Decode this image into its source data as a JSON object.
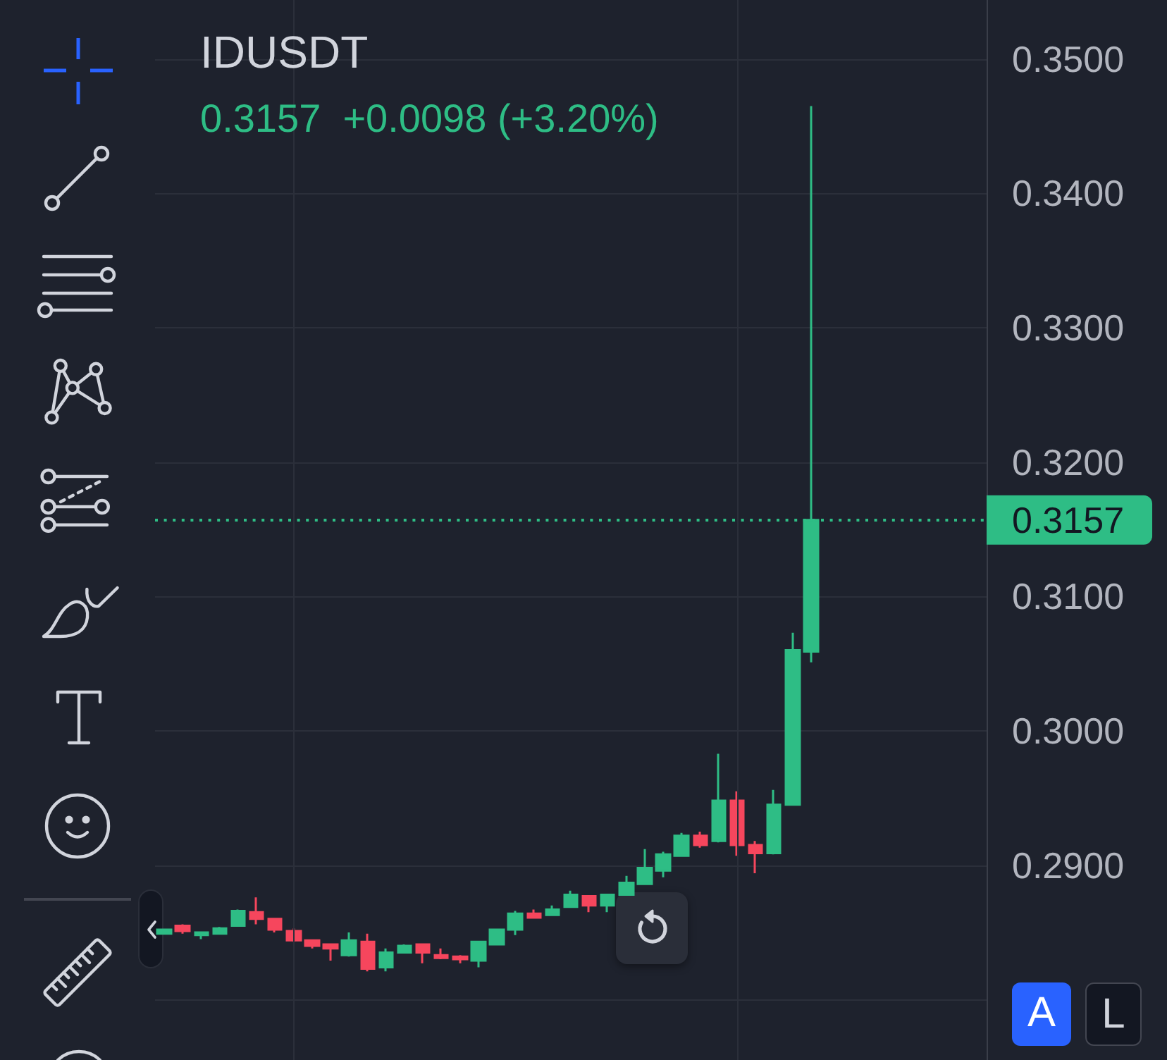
{
  "chart_data": {
    "type": "candlestick",
    "title": "IDUSDT",
    "subtitle": "0.3157  +0.0098 (+3.20%)",
    "categories": [
      null,
      null,
      null,
      null,
      null,
      null,
      null,
      null,
      null,
      null,
      null,
      null,
      null,
      null,
      null,
      null,
      null,
      null,
      null,
      null,
      null,
      null,
      null,
      null,
      null,
      null,
      null,
      null,
      null,
      null,
      null,
      null,
      null,
      null,
      null,
      null,
      null,
      null,
      null,
      null,
      null,
      null,
      null,
      null,
      null
    ],
    "ohlc": [
      [
        0.2849,
        0.2852,
        0.2849,
        0.2852
      ],
      [
        0.2855,
        0.2856,
        0.2849,
        0.2851
      ],
      [
        0.2848,
        0.285,
        0.2845,
        0.285
      ],
      [
        0.2849,
        0.2854,
        0.2849,
        0.2853
      ],
      [
        0.2855,
        0.2867,
        0.2855,
        0.2866
      ],
      [
        0.2865,
        0.2876,
        0.2856,
        0.286
      ],
      [
        0.286,
        0.286,
        0.285,
        0.2852
      ],
      [
        0.2851,
        0.2853,
        0.2843,
        0.2844
      ],
      [
        0.2844,
        0.2844,
        0.2838,
        0.284
      ],
      [
        0.2841,
        0.2841,
        0.2829,
        0.2838
      ],
      [
        0.2833,
        0.285,
        0.2832,
        0.2844
      ],
      [
        0.2843,
        0.2849,
        0.2821,
        0.2823
      ],
      [
        0.2824,
        0.2838,
        0.2821,
        0.2835
      ],
      [
        0.2835,
        0.2841,
        0.2835,
        0.284
      ],
      [
        0.2841,
        0.2841,
        0.2827,
        0.2835
      ],
      [
        0.2833,
        0.2838,
        0.283,
        0.2831
      ],
      [
        0.2832,
        0.2833,
        0.2827,
        0.283
      ],
      [
        0.2829,
        0.2843,
        0.2824,
        0.2843
      ],
      [
        0.2841,
        0.2852,
        0.2841,
        0.2852
      ],
      [
        0.2852,
        0.2866,
        0.2848,
        0.2864
      ],
      [
        0.2864,
        0.2867,
        0.2861,
        0.2861
      ],
      [
        0.2863,
        0.287,
        0.2863,
        0.2867
      ],
      [
        0.2869,
        0.2881,
        0.2869,
        0.2878
      ],
      [
        0.2877,
        0.2877,
        0.2865,
        0.287
      ],
      [
        0.287,
        0.2878,
        0.2865,
        0.2878
      ],
      [
        0.2878,
        0.2892,
        0.2878,
        0.2887
      ],
      [
        0.2886,
        0.2912,
        0.2886,
        0.2898
      ],
      [
        0.2896,
        0.291,
        0.2891,
        0.2908
      ],
      [
        0.2907,
        0.2924,
        0.2907,
        0.2922
      ],
      [
        0.2922,
        0.2925,
        0.2913,
        0.2915
      ],
      [
        0.2918,
        0.2983,
        0.2917,
        0.2948
      ],
      [
        0.2948,
        0.2955,
        0.2907,
        0.2915
      ],
      [
        0.2915,
        0.2918,
        0.2894,
        0.2909
      ],
      [
        0.2909,
        0.2956,
        0.2908,
        0.2945
      ],
      [
        0.2945,
        0.3073,
        0.2945,
        0.306
      ],
      [
        0.3059,
        0.3465,
        0.3051,
        0.3157
      ],
      null,
      null,
      null,
      null,
      null,
      null,
      null,
      null,
      null
    ],
    "colors": [
      "#2ebd85",
      "#f6465d",
      "#2ebd85",
      "#2ebd85",
      "#2ebd85",
      "#f6465d",
      "#f6465d",
      "#f6465d",
      "#f6465d",
      "#f6465d",
      "#2ebd85",
      "#f6465d",
      "#2ebd85",
      "#2ebd85",
      "#f6465d",
      "#f6465d",
      "#f6465d",
      "#2ebd85",
      "#2ebd85",
      "#2ebd85",
      "#f6465d",
      "#2ebd85",
      "#2ebd85",
      "#f6465d",
      "#2ebd85",
      "#2ebd85",
      "#2ebd85",
      "#2ebd85",
      "#2ebd85",
      "#f6465d",
      "#2ebd85",
      "#f6465d",
      "#f6465d",
      "#2ebd85",
      "#2ebd85",
      "#2ebd85",
      null,
      null,
      null,
      null,
      null,
      null,
      null,
      null,
      null
    ],
    "ylim": [
      0.2755,
      0.3544
    ],
    "yticks": [
      {
        "value": 0.28,
        "label": null
      },
      {
        "value": 0.29,
        "label": "0.2900"
      },
      {
        "value": 0.3,
        "label": "0.3000"
      },
      {
        "value": 0.31,
        "label": "0.3100"
      },
      {
        "value": 0.32,
        "label": "0.3200"
      },
      {
        "value": 0.33,
        "label": "0.3300"
      },
      {
        "value": 0.34,
        "label": "0.3400"
      },
      {
        "value": 0.35,
        "label": "0.3500"
      }
    ],
    "tick_labels": "y",
    "grid": true,
    "ref_lines": [
      {
        "axis": "y",
        "value": 0.3157,
        "label": "0.3157",
        "color": "#2ebd85",
        "line_style": "dotted"
      }
    ],
    "annotations": [
      "A",
      "L"
    ]
  }
}
